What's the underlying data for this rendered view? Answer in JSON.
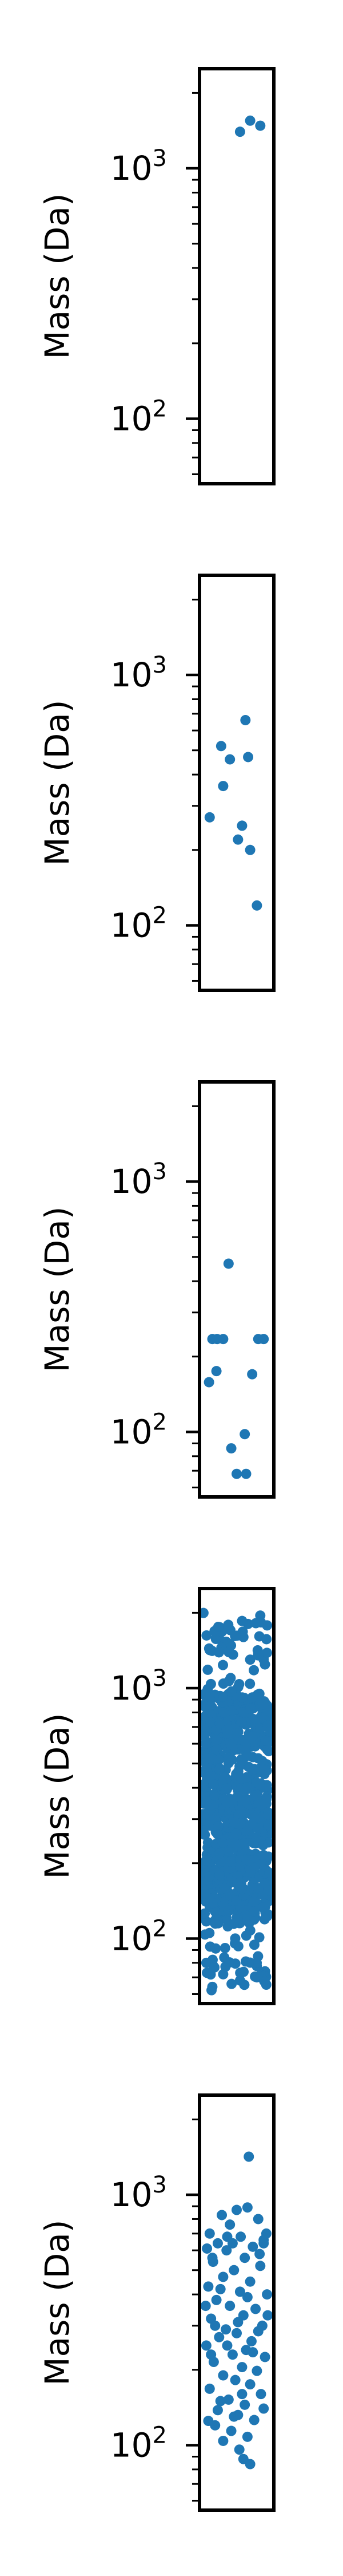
{
  "colors": {
    "points": "#1f77b4",
    "axes": "#000000"
  },
  "chart_data": [
    {
      "type": "scatter",
      "title": "",
      "xlabel": "",
      "ylabel": "Mass (Da)",
      "yscale": "log",
      "ylim": [
        55,
        2500
      ],
      "xlim": [
        0,
        1
      ],
      "y_ticks": [
        {
          "value": 100,
          "base": "10",
          "exp": "2"
        },
        {
          "value": 1000,
          "base": "10",
          "exp": "3"
        }
      ],
      "grid": false,
      "legend": "none",
      "points": [
        [
          0.55,
          1400
        ],
        [
          0.7,
          1550
        ],
        [
          0.85,
          1480
        ]
      ]
    },
    {
      "type": "scatter",
      "title": "",
      "xlabel": "",
      "ylabel": "Mass (Da)",
      "yscale": "log",
      "ylim": [
        55,
        2500
      ],
      "xlim": [
        0,
        1
      ],
      "y_ticks": [
        {
          "value": 100,
          "base": "10",
          "exp": "2"
        },
        {
          "value": 1000,
          "base": "10",
          "exp": "3"
        }
      ],
      "grid": false,
      "legend": "none",
      "points": [
        [
          0.27,
          520
        ],
        [
          0.63,
          660
        ],
        [
          0.4,
          460
        ],
        [
          0.67,
          470
        ],
        [
          0.3,
          360
        ],
        [
          0.1,
          270
        ],
        [
          0.58,
          250
        ],
        [
          0.52,
          220
        ],
        [
          0.7,
          200
        ],
        [
          0.8,
          120
        ]
      ]
    },
    {
      "type": "scatter",
      "title": "",
      "xlabel": "",
      "ylabel": "Mass (Da)",
      "yscale": "log",
      "ylim": [
        55,
        2500
      ],
      "xlim": [
        0,
        1
      ],
      "y_ticks": [
        {
          "value": 100,
          "base": "10",
          "exp": "2"
        },
        {
          "value": 1000,
          "base": "10",
          "exp": "3"
        }
      ],
      "grid": false,
      "legend": "none",
      "points": [
        [
          0.38,
          470
        ],
        [
          0.14,
          235
        ],
        [
          0.21,
          235
        ],
        [
          0.3,
          235
        ],
        [
          0.82,
          235
        ],
        [
          0.9,
          235
        ],
        [
          0.2,
          175
        ],
        [
          0.73,
          170
        ],
        [
          0.09,
          158
        ],
        [
          0.62,
          98
        ],
        [
          0.42,
          86
        ],
        [
          0.5,
          68
        ],
        [
          0.64,
          68
        ]
      ]
    },
    {
      "type": "scatter",
      "title": "",
      "xlabel": "",
      "ylabel": "Mass (Da)",
      "yscale": "log",
      "ylim": [
        55,
        2500
      ],
      "xlim": [
        0,
        1
      ],
      "y_ticks": [
        {
          "value": 100,
          "base": "10",
          "exp": "2"
        },
        {
          "value": 1000,
          "base": "10",
          "exp": "3"
        }
      ],
      "grid": false,
      "legend": "none",
      "generated_cloud": {
        "seed": 7,
        "groups": [
          {
            "count": 230,
            "ymin": 560,
            "ymax": 950
          },
          {
            "count": 520,
            "ymin": 115,
            "ymax": 540
          },
          {
            "count": 45,
            "ymin": 950,
            "ymax": 2000
          },
          {
            "count": 40,
            "ymin": 62,
            "ymax": 115
          }
        ]
      },
      "points": [
        [
          0.85,
          1950
        ],
        [
          0.25,
          1750
        ],
        [
          0.6,
          1600
        ],
        [
          0.4,
          1500
        ],
        [
          0.1,
          1420
        ],
        [
          0.7,
          1300
        ],
        [
          0.15,
          78
        ],
        [
          0.3,
          72
        ],
        [
          0.55,
          68
        ],
        [
          0.8,
          70
        ],
        [
          0.92,
          74
        ],
        [
          0.05,
          80
        ]
      ]
    },
    {
      "type": "scatter",
      "title": "",
      "xlabel": "",
      "ylabel": "Mass (Da)",
      "yscale": "log",
      "ylim": [
        55,
        2500
      ],
      "xlim": [
        0,
        1
      ],
      "y_ticks": [
        {
          "value": 100,
          "base": "10",
          "exp": "2"
        },
        {
          "value": 1000,
          "base": "10",
          "exp": "3"
        }
      ],
      "grid": false,
      "legend": "none",
      "points": [
        [
          0.68,
          1420
        ],
        [
          0.66,
          890
        ],
        [
          0.5,
          870
        ],
        [
          0.28,
          830
        ],
        [
          0.82,
          800
        ],
        [
          0.4,
          760
        ],
        [
          0.1,
          700
        ],
        [
          0.56,
          680
        ],
        [
          0.9,
          660
        ],
        [
          0.22,
          640
        ],
        [
          0.74,
          620
        ],
        [
          0.35,
          600
        ],
        [
          0.62,
          560
        ],
        [
          0.15,
          540
        ],
        [
          0.85,
          520
        ],
        [
          0.46,
          500
        ],
        [
          0.3,
          470
        ],
        [
          0.7,
          450
        ],
        [
          0.08,
          430
        ],
        [
          0.55,
          410
        ],
        [
          0.95,
          400
        ],
        [
          0.2,
          380
        ],
        [
          0.4,
          360
        ],
        [
          0.78,
          350
        ],
        [
          0.6,
          330
        ],
        [
          0.12,
          320
        ],
        [
          0.88,
          300
        ],
        [
          0.34,
          290
        ],
        [
          0.5,
          280
        ],
        [
          0.24,
          270
        ],
        [
          0.72,
          260
        ],
        [
          0.05,
          250
        ],
        [
          0.64,
          240
        ],
        [
          0.44,
          230
        ],
        [
          0.92,
          225
        ],
        [
          0.16,
          215
        ],
        [
          0.58,
          205
        ],
        [
          0.8,
          198
        ],
        [
          0.3,
          190
        ],
        [
          0.48,
          182
        ],
        [
          0.7,
          175
        ],
        [
          0.1,
          168
        ],
        [
          0.86,
          160
        ],
        [
          0.38,
          152
        ],
        [
          0.62,
          145
        ],
        [
          0.22,
          138
        ],
        [
          0.52,
          132
        ],
        [
          0.76,
          126
        ],
        [
          0.18,
          120
        ],
        [
          0.42,
          114
        ],
        [
          0.66,
          108
        ],
        [
          0.3,
          104
        ],
        [
          0.54,
          96
        ],
        [
          0.6,
          88
        ],
        [
          0.7,
          84
        ],
        [
          0.9,
          640
        ],
        [
          0.94,
          700
        ],
        [
          0.06,
          610
        ],
        [
          0.14,
          560
        ],
        [
          0.36,
          680
        ],
        [
          0.44,
          640
        ],
        [
          0.84,
          580
        ],
        [
          0.26,
          420
        ],
        [
          0.66,
          390
        ],
        [
          0.04,
          360
        ],
        [
          0.96,
          330
        ],
        [
          0.52,
          310
        ],
        [
          0.18,
          300
        ],
        [
          0.82,
          285
        ],
        [
          0.36,
          250
        ],
        [
          0.74,
          235
        ],
        [
          0.12,
          230
        ],
        [
          0.58,
          160
        ],
        [
          0.26,
          150
        ],
        [
          0.9,
          140
        ],
        [
          0.46,
          130
        ],
        [
          0.08,
          125
        ]
      ]
    }
  ]
}
